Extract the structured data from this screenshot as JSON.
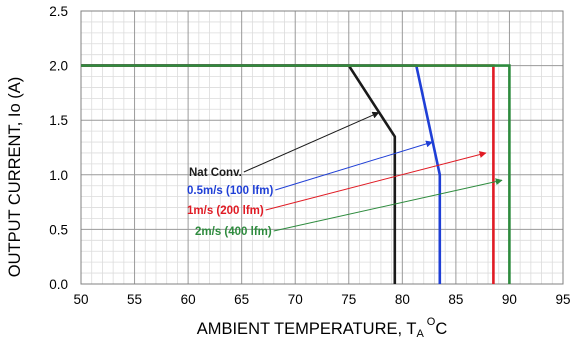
{
  "chart_data": {
    "type": "line",
    "title": "",
    "xlabel": "AMBIENT TEMPERATURE, T",
    "xlabel_sub": "A",
    "xlabel_sup": "O",
    "xlabel_unit": "C",
    "ylabel": "OUTPUT CURRENT, Io  (A)",
    "xlim": [
      50,
      95
    ],
    "ylim": [
      0,
      2.5
    ],
    "x_ticks": [
      "50",
      "55",
      "60",
      "65",
      "70",
      "75",
      "80",
      "85",
      "90",
      "95"
    ],
    "y_ticks": [
      "0.0",
      "0.5",
      "1.0",
      "1.5",
      "2.0",
      "2.5"
    ],
    "grid": true,
    "series": [
      {
        "name": "Nat Conv.",
        "color": "#1a1a1a",
        "x": [
          50,
          75,
          79.3,
          79.3
        ],
        "y": [
          2.0,
          2.0,
          1.35,
          0.0
        ]
      },
      {
        "name": "0.5m/s (100 lfm)",
        "color": "#1f3fd6",
        "x": [
          50,
          81.3,
          83.5,
          83.5
        ],
        "y": [
          2.0,
          2.0,
          1.0,
          0.0
        ]
      },
      {
        "name": "1m/s (200 lfm)",
        "color": "#e01b24",
        "x": [
          50,
          88.5,
          88.5
        ],
        "y": [
          2.0,
          2.0,
          0.0
        ]
      },
      {
        "name": "2m/s (400 lfm)",
        "color": "#2e8b3e",
        "x": [
          50,
          90,
          90
        ],
        "y": [
          2.0,
          2.0,
          0.0
        ]
      }
    ],
    "annotations": [
      {
        "text": "Nat Conv.",
        "color": "#1a1a1a",
        "arrow_to": [
          77.8,
          1.57
        ]
      },
      {
        "text": "0.5m/s (100 lfm)",
        "color": "#1f3fd6",
        "arrow_to": [
          82.8,
          1.3
        ]
      },
      {
        "text": "1m/s (200 lfm)",
        "color": "#e01b24",
        "arrow_to": [
          87.8,
          1.2
        ]
      },
      {
        "text": "2m/s (400 lfm)",
        "color": "#2e8b3e",
        "arrow_to": [
          89.3,
          0.95
        ]
      }
    ]
  }
}
